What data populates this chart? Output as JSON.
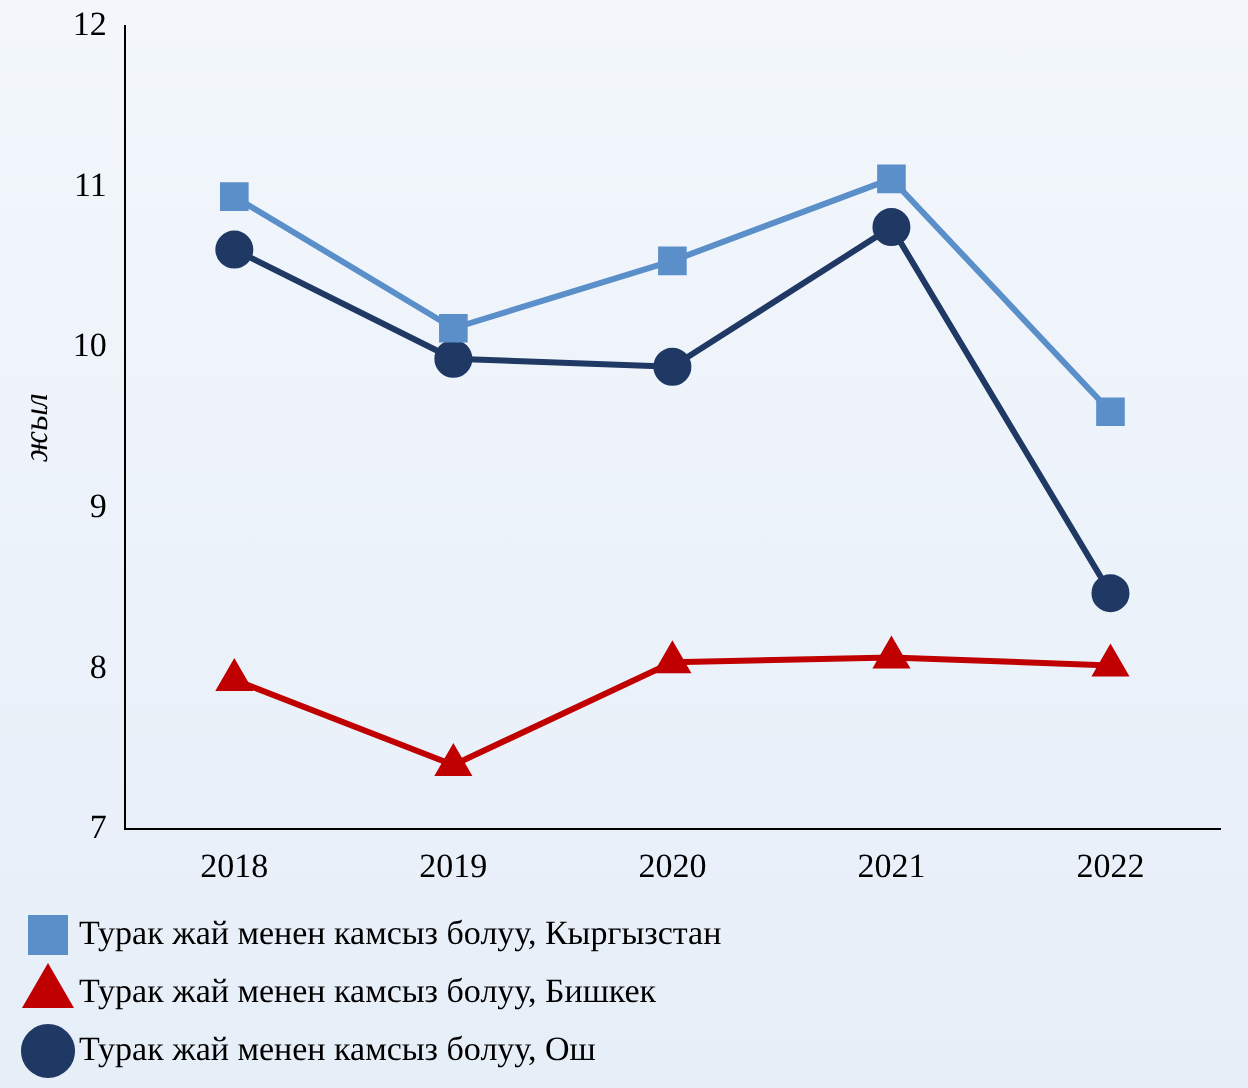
{
  "chart_data": {
    "type": "line",
    "ylabel": "жыл",
    "categories": [
      "2018",
      "2019",
      "2020",
      "2021",
      "2022"
    ],
    "series": [
      {
        "name": "Турак жай менен камсыз болуу, Кыргызстан",
        "color": "#5b8fc9",
        "marker": "square",
        "values": [
          10.94,
          10.12,
          10.54,
          11.05,
          9.6
        ]
      },
      {
        "name": "Турак жай менен камсыз болуу, Бишкек",
        "color": "#c00000",
        "marker": "triangle",
        "values": [
          7.93,
          7.4,
          8.04,
          8.07,
          8.02
        ]
      },
      {
        "name": "Турак жай менен камсыз болуу, Ош",
        "color": "#1f3864",
        "marker": "circle",
        "values": [
          10.61,
          9.93,
          9.88,
          10.75,
          8.47
        ]
      }
    ],
    "ylim": [
      7,
      12
    ],
    "yticks": [
      7,
      8,
      9,
      10,
      11,
      12
    ],
    "grid": false,
    "legend": "bottom"
  }
}
